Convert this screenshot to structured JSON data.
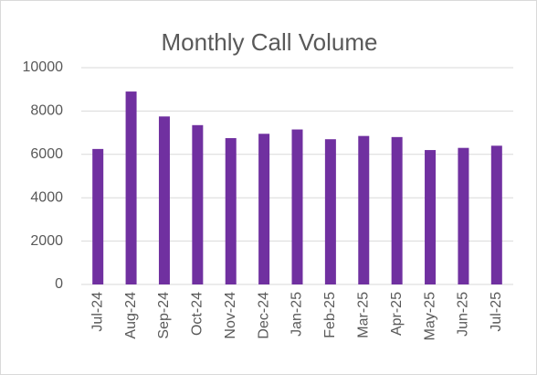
{
  "chart_data": {
    "type": "bar",
    "title": "Monthly Call Volume",
    "categories": [
      "Jul-24",
      "Aug-24",
      "Sep-24",
      "Oct-24",
      "Nov-24",
      "Dec-24",
      "Jan-25",
      "Feb-25",
      "Mar-25",
      "Apr-25",
      "May-25",
      "Jun-25",
      "Jul-25"
    ],
    "values": [
      6250,
      8900,
      7750,
      7350,
      6750,
      6950,
      7150,
      6700,
      6850,
      6800,
      6200,
      6300,
      6400
    ],
    "color": "#7030a0",
    "ylim": [
      0,
      10000
    ],
    "yticks": [
      0,
      2000,
      4000,
      6000,
      8000,
      10000
    ],
    "grid": true
  }
}
